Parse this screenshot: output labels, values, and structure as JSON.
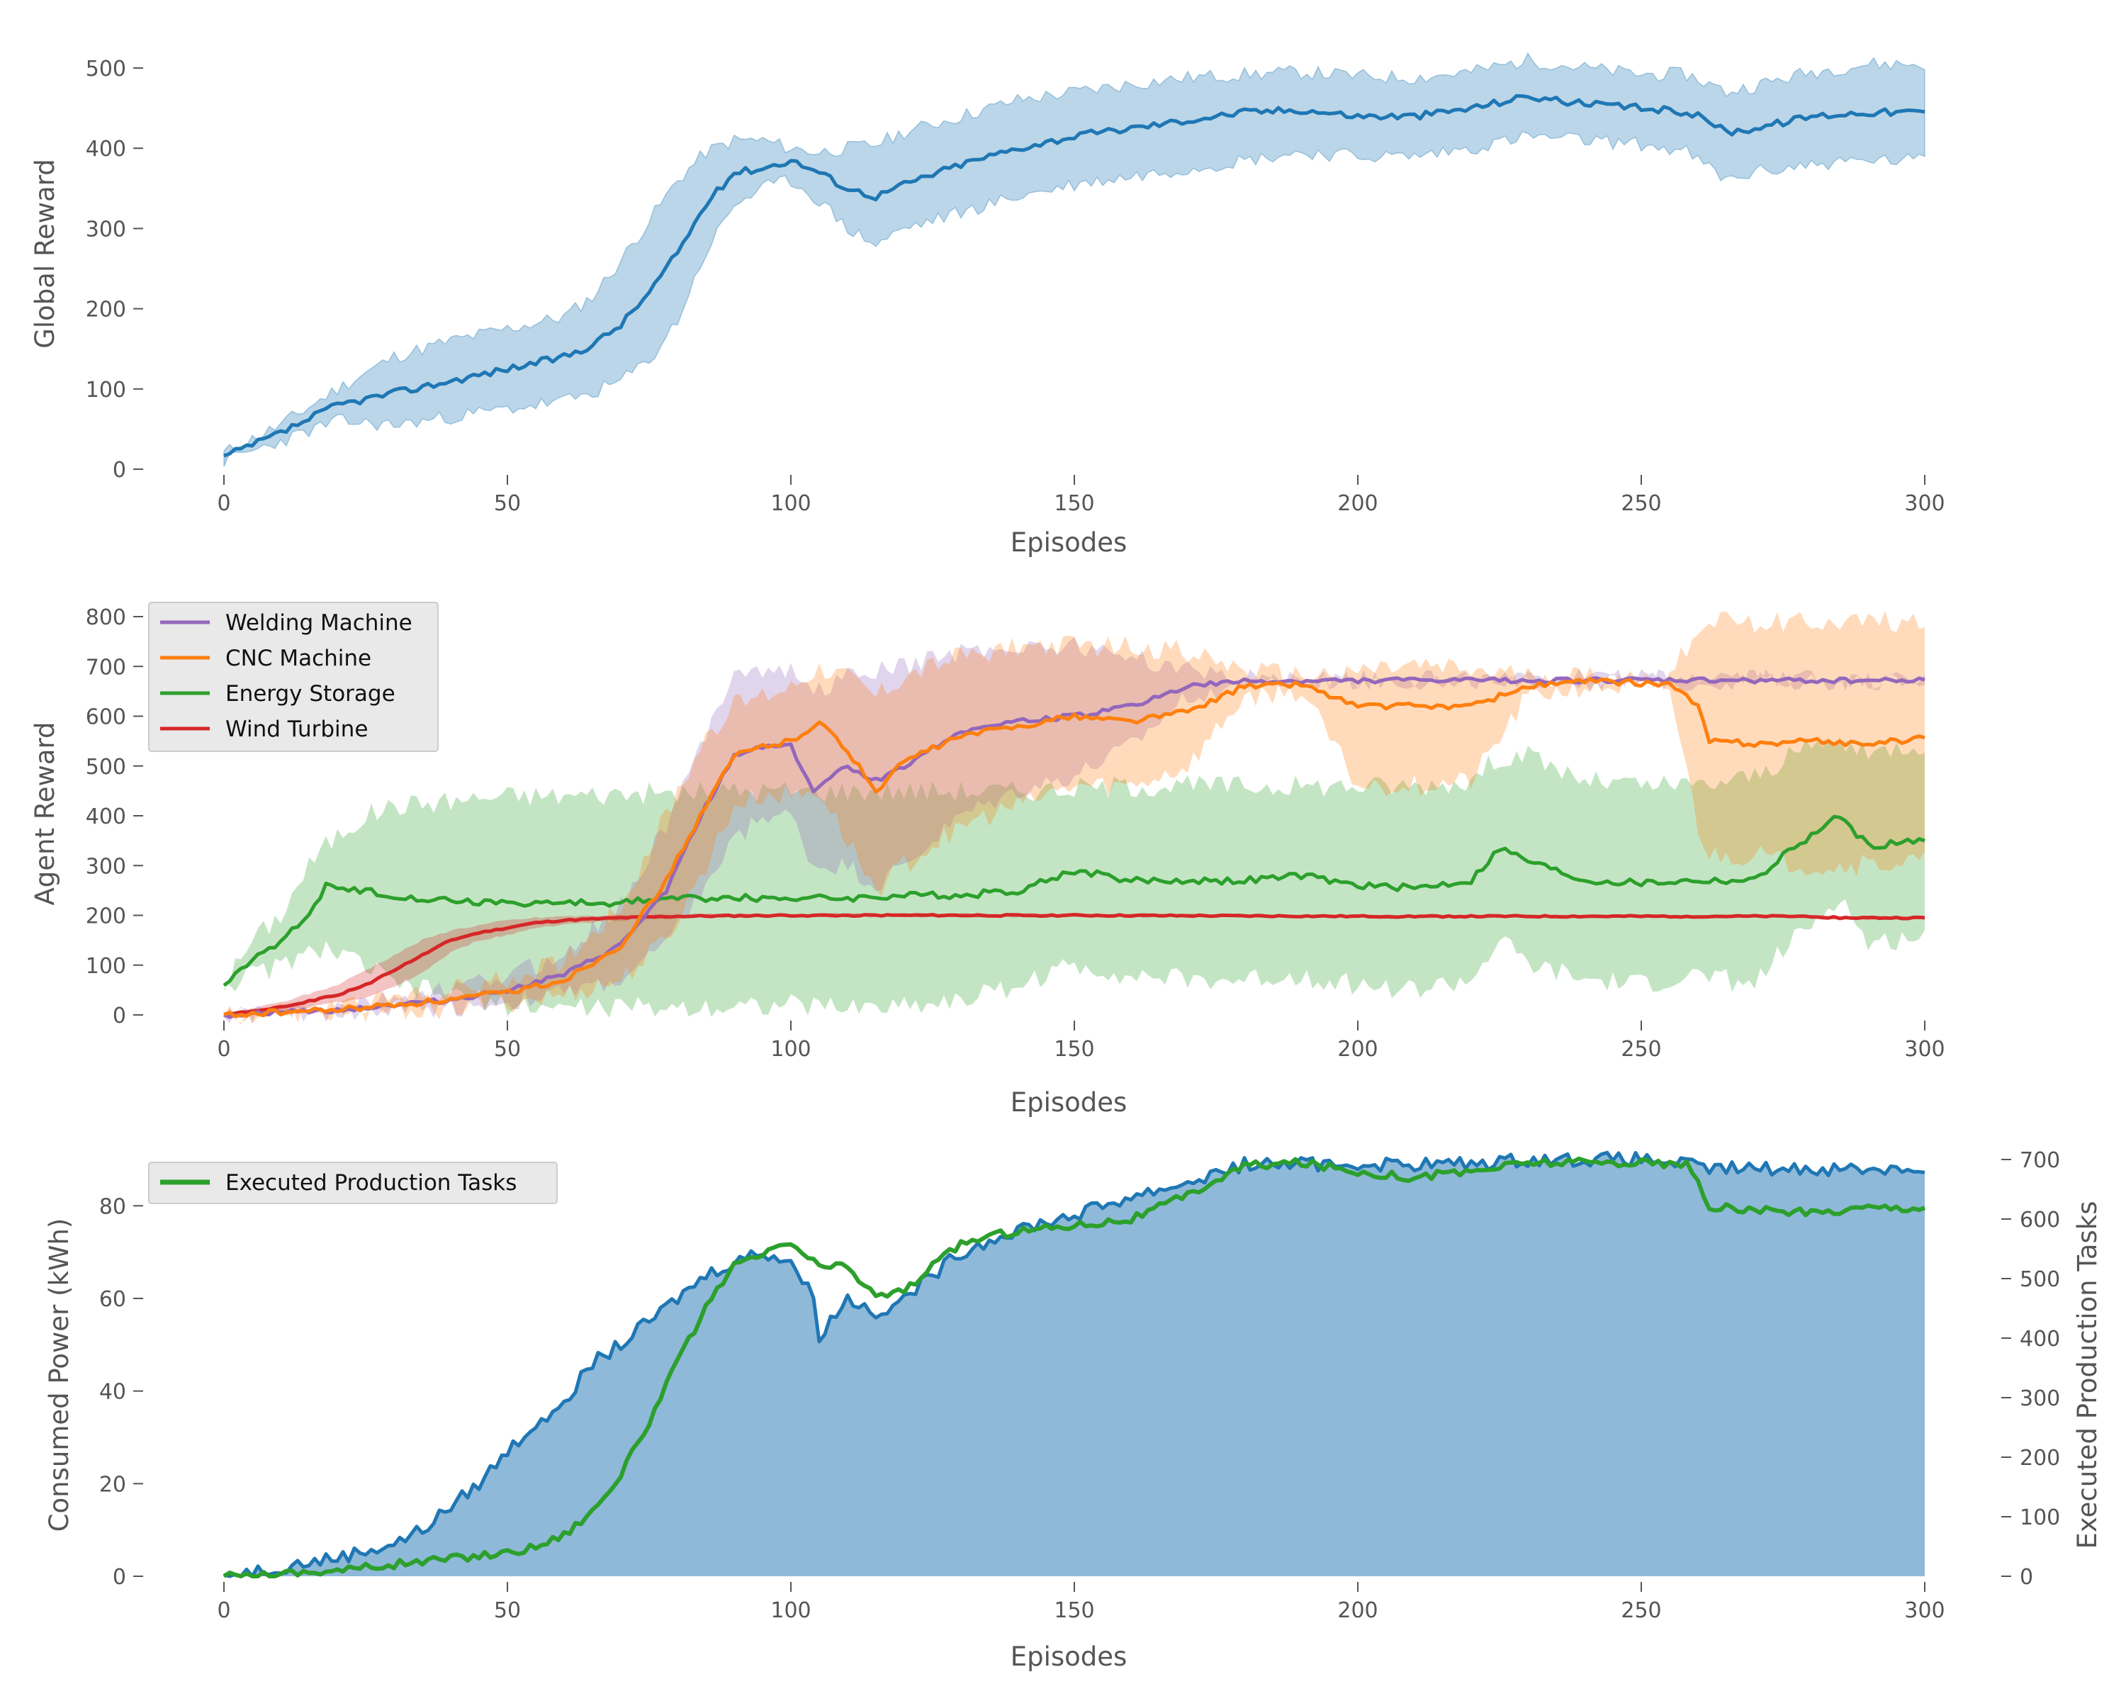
{
  "chart_data": [
    {
      "type": "line",
      "xlabel": "Episodes",
      "ylabel": "Global Reward",
      "xlim": [
        0,
        300
      ],
      "ylim": [
        0,
        500
      ],
      "xticks": [
        0,
        50,
        100,
        150,
        200,
        250,
        300
      ],
      "yticks": [
        0,
        100,
        200,
        300,
        400,
        500
      ],
      "grid": false,
      "legend": "none",
      "shaded_band": "variability band around mean",
      "series": [
        {
          "color": "#1f77b4",
          "x": [
            0,
            10,
            20,
            30,
            40,
            50,
            60,
            65,
            70,
            75,
            80,
            85,
            90,
            95,
            100,
            105,
            110,
            115,
            120,
            130,
            140,
            150,
            160,
            170,
            180,
            190,
            200,
            210,
            220,
            230,
            240,
            250,
            258,
            262,
            265,
            270,
            280,
            290,
            300
          ],
          "y": [
            15,
            45,
            80,
            95,
            110,
            125,
            140,
            155,
            180,
            220,
            270,
            330,
            370,
            375,
            385,
            370,
            350,
            340,
            355,
            380,
            400,
            415,
            425,
            435,
            445,
            448,
            440,
            440,
            450,
            465,
            455,
            450,
            445,
            435,
            420,
            425,
            440,
            445,
            445
          ],
          "upper": [
            20,
            55,
            100,
            140,
            160,
            175,
            190,
            215,
            260,
            310,
            360,
            395,
            410,
            410,
            400,
            395,
            400,
            405,
            420,
            440,
            460,
            470,
            480,
            488,
            492,
            495,
            490,
            488,
            495,
            510,
            500,
            492,
            492,
            480,
            470,
            478,
            495,
            505,
            505
          ],
          "lower": [
            10,
            35,
            60,
            55,
            65,
            75,
            85,
            95,
            110,
            135,
            185,
            270,
            330,
            350,
            360,
            335,
            300,
            280,
            300,
            320,
            340,
            355,
            365,
            375,
            385,
            395,
            390,
            390,
            400,
            415,
            410,
            405,
            395,
            375,
            360,
            370,
            380,
            385,
            385
          ]
        }
      ]
    },
    {
      "type": "line",
      "xlabel": "Episodes",
      "ylabel": "Agent Reward",
      "xlim": [
        0,
        300
      ],
      "ylim": [
        0,
        800
      ],
      "xticks": [
        0,
        50,
        100,
        150,
        200,
        250,
        300
      ],
      "yticks": [
        0,
        100,
        200,
        300,
        400,
        500,
        600,
        700,
        800
      ],
      "grid": false,
      "legend": "top-left",
      "series": [
        {
          "name": "Welding Machine",
          "color": "#9467bd",
          "x": [
            0,
            20,
            40,
            50,
            60,
            70,
            78,
            85,
            90,
            95,
            100,
            104,
            110,
            115,
            120,
            130,
            140,
            150,
            160,
            170,
            180,
            190,
            200,
            220,
            240,
            260,
            280,
            300
          ],
          "y": [
            0,
            10,
            30,
            50,
            80,
            140,
            250,
            420,
            520,
            540,
            540,
            450,
            500,
            470,
            500,
            570,
            590,
            600,
            620,
            660,
            670,
            670,
            672,
            672,
            672,
            672,
            672,
            672
          ],
          "upper": [
            0,
            15,
            50,
            80,
            120,
            220,
            380,
            560,
            700,
            690,
            690,
            650,
            680,
            690,
            700,
            730,
            740,
            740,
            720,
            690,
            680,
            675,
            675,
            675,
            675,
            675,
            675,
            675
          ],
          "lower": [
            0,
            5,
            15,
            25,
            45,
            70,
            140,
            260,
            350,
            400,
            400,
            300,
            300,
            260,
            300,
            400,
            450,
            480,
            540,
            640,
            665,
            668,
            670,
            670,
            670,
            670,
            670,
            670
          ]
        },
        {
          "name": "CNC Machine",
          "color": "#ff7f0e",
          "x": [
            0,
            20,
            40,
            50,
            60,
            70,
            78,
            85,
            90,
            95,
            100,
            105,
            110,
            115,
            120,
            130,
            140,
            150,
            160,
            170,
            180,
            190,
            200,
            210,
            220,
            230,
            240,
            255,
            260,
            262,
            270,
            280,
            290,
            300
          ],
          "y": [
            0,
            10,
            30,
            45,
            70,
            140,
            270,
            420,
            520,
            540,
            550,
            590,
            530,
            450,
            510,
            560,
            580,
            600,
            590,
            610,
            660,
            665,
            620,
            620,
            620,
            660,
            670,
            665,
            620,
            550,
            545,
            550,
            545,
            555
          ],
          "upper": [
            0,
            15,
            50,
            70,
            110,
            220,
            400,
            560,
            620,
            640,
            660,
            700,
            680,
            640,
            680,
            720,
            740,
            740,
            740,
            730,
            690,
            680,
            690,
            700,
            690,
            680,
            680,
            675,
            780,
            790,
            790,
            790,
            790,
            790
          ],
          "lower": [
            0,
            5,
            15,
            25,
            40,
            70,
            150,
            300,
            420,
            440,
            440,
            450,
            350,
            250,
            300,
            380,
            420,
            460,
            460,
            500,
            640,
            650,
            460,
            460,
            470,
            640,
            660,
            655,
            380,
            320,
            320,
            300,
            300,
            310
          ]
        },
        {
          "name": "Energy Storage",
          "color": "#2ca02c",
          "x": [
            0,
            5,
            10,
            15,
            18,
            20,
            25,
            30,
            40,
            50,
            60,
            70,
            80,
            90,
            100,
            110,
            120,
            130,
            140,
            150,
            160,
            170,
            180,
            190,
            200,
            210,
            220,
            225,
            230,
            240,
            250,
            260,
            270,
            275,
            280,
            285,
            290,
            295,
            300
          ],
          "y": [
            60,
            110,
            150,
            200,
            260,
            250,
            250,
            240,
            230,
            225,
            225,
            225,
            235,
            235,
            235,
            235,
            240,
            240,
            250,
            290,
            270,
            270,
            270,
            280,
            260,
            255,
            270,
            335,
            310,
            270,
            265,
            270,
            270,
            320,
            360,
            400,
            340,
            345,
            350
          ],
          "upper": [
            60,
            150,
            200,
            300,
            340,
            360,
            400,
            420,
            430,
            440,
            440,
            445,
            445,
            450,
            450,
            450,
            450,
            450,
            450,
            455,
            460,
            460,
            460,
            460,
            460,
            460,
            470,
            520,
            520,
            470,
            460,
            460,
            480,
            510,
            540,
            550,
            520,
            540,
            545
          ],
          "lower": [
            60,
            80,
            100,
            120,
            140,
            120,
            100,
            60,
            40,
            20,
            15,
            15,
            15,
            20,
            20,
            15,
            20,
            30,
            60,
            100,
            80,
            70,
            70,
            80,
            60,
            50,
            70,
            150,
            100,
            70,
            60,
            80,
            60,
            130,
            180,
            240,
            140,
            150,
            160
          ]
        },
        {
          "name": "Wind Turbine",
          "color": "#d62728",
          "x": [
            0,
            10,
            20,
            25,
            30,
            35,
            40,
            45,
            50,
            55,
            60,
            70,
            80,
            100,
            150,
            200,
            250,
            280,
            285,
            290,
            300
          ],
          "y": [
            0,
            15,
            40,
            60,
            90,
            120,
            150,
            165,
            175,
            185,
            190,
            195,
            198,
            200,
            200,
            198,
            198,
            198,
            195,
            195,
            195
          ],
          "upper": [
            2,
            25,
            60,
            90,
            120,
            150,
            170,
            180,
            190,
            195,
            198,
            200,
            202,
            203,
            203,
            200,
            200,
            200,
            198,
            198,
            198
          ],
          "lower": [
            -2,
            5,
            25,
            35,
            55,
            85,
            125,
            150,
            160,
            175,
            182,
            190,
            195,
            197,
            197,
            196,
            196,
            196,
            192,
            192,
            192
          ]
        }
      ]
    },
    {
      "type": "area",
      "xlabel": "Episodes",
      "ylabel": "Consumed Power (kWh)",
      "y2label": "Executed Production Tasks",
      "xlim": [
        0,
        300
      ],
      "ylim": [
        0,
        90
      ],
      "y2lim": [
        0,
        700
      ],
      "xticks": [
        0,
        50,
        100,
        150,
        200,
        250,
        300
      ],
      "yticks": [
        0,
        20,
        40,
        60,
        80
      ],
      "y2ticks": [
        0,
        100,
        200,
        300,
        400,
        500,
        600,
        700
      ],
      "grid": false,
      "legend": "top-left",
      "series": [
        {
          "axis": "left",
          "color": "#1f77b4",
          "fill": "#8fb9d9",
          "x": [
            0,
            10,
            20,
            30,
            35,
            40,
            45,
            50,
            55,
            60,
            65,
            70,
            75,
            80,
            85,
            90,
            95,
            100,
            104,
            105,
            110,
            115,
            120,
            125,
            130,
            140,
            150,
            160,
            170,
            180,
            190,
            200,
            210,
            220,
            230,
            240,
            250,
            258,
            260,
            265,
            270,
            280,
            290,
            300
          ],
          "y": [
            0,
            2,
            4,
            7,
            10,
            15,
            20,
            27,
            33,
            38,
            46,
            50,
            55,
            60,
            65,
            68,
            70,
            68,
            60,
            52,
            60,
            57,
            60,
            65,
            70,
            75,
            78,
            82,
            85,
            89,
            89,
            89,
            89,
            89,
            90,
            90,
            90,
            89,
            88,
            88,
            88,
            88,
            88,
            88
          ]
        },
        {
          "name": "Executed Production Tasks",
          "axis": "right",
          "color": "#2ca02c",
          "x": [
            0,
            10,
            20,
            30,
            40,
            50,
            55,
            60,
            65,
            70,
            75,
            80,
            85,
            90,
            95,
            100,
            105,
            110,
            115,
            120,
            125,
            130,
            140,
            150,
            160,
            170,
            180,
            190,
            200,
            210,
            220,
            230,
            240,
            250,
            258,
            260,
            262,
            270,
            280,
            290,
            300
          ],
          "y": [
            0,
            5,
            10,
            20,
            30,
            40,
            50,
            70,
            110,
            170,
            260,
            360,
            450,
            520,
            540,
            560,
            520,
            520,
            470,
            480,
            520,
            560,
            580,
            590,
            600,
            640,
            690,
            695,
            680,
            670,
            680,
            695,
            695,
            695,
            690,
            660,
            620,
            615,
            610,
            620,
            620
          ]
        }
      ]
    }
  ]
}
